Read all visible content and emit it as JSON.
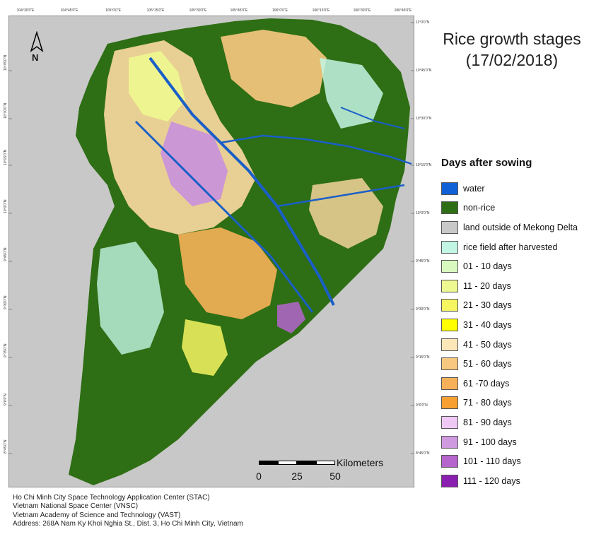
{
  "map": {
    "title_line1": "Rice growth stages",
    "title_line2": "(17/02/2018)",
    "north_label": "N",
    "graticule_top": [
      "104°30'0\"E",
      "104°45'0\"E",
      "105°0'0\"E",
      "105°15'0\"E",
      "105°30'0\"E",
      "105°45'0\"E",
      "106°0'0\"E",
      "106°15'0\"E",
      "106°30'0\"E",
      "106°45'0\"E"
    ],
    "graticule_right": [
      "11°0'0\"N",
      "10°45'0\"N",
      "10°30'0\"N",
      "10°15'0\"N",
      "10°0'0\"N",
      "9°45'0\"N",
      "9°30'0\"N",
      "9°15'0\"N",
      "9°0'0\"N",
      "8°45'0\"N"
    ],
    "graticule_left": [
      "10°45'0\"N",
      "10°30'0\"N",
      "10°15'0\"N",
      "10°0'0\"N",
      "9°45'0\"N",
      "9°30'0\"N",
      "9°15'0\"N",
      "9°0'0\"N",
      "8°45'0\"N"
    ],
    "colors": {
      "background": "#c8c8c8",
      "non_rice": "#2e6e14",
      "water": "#1a5fc8"
    }
  },
  "legend": {
    "title": "Days after sowing",
    "items": [
      {
        "label": "water",
        "color": "#1060d8"
      },
      {
        "label": "non-rice",
        "color": "#2e6e14"
      },
      {
        "label": "land outside of Mekong Delta",
        "color": "#c8c8c8"
      },
      {
        "label": "rice field after harvested",
        "color": "#c3f5e4"
      },
      {
        "label": "01 - 10 days",
        "color": "#d8f8c0"
      },
      {
        "label": "11 - 20 days",
        "color": "#eef890"
      },
      {
        "label": "21 - 30 days",
        "color": "#f6f660"
      },
      {
        "label": "31 - 40 days",
        "color": "#ffff00"
      },
      {
        "label": "41 - 50 days",
        "color": "#fbe7b8"
      },
      {
        "label": "51 - 60 days",
        "color": "#f8c880"
      },
      {
        "label": "61 -70 days",
        "color": "#f6b058"
      },
      {
        "label": "71 - 80 days",
        "color": "#f5a030"
      },
      {
        "label": "81 - 90 days",
        "color": "#efc8f6"
      },
      {
        "label": "91 - 100 days",
        "color": "#d09ae0"
      },
      {
        "label": "101 - 110 days",
        "color": "#b565cc"
      },
      {
        "label": "111 - 120 days",
        "color": "#8a1eb0"
      }
    ]
  },
  "scalebar": {
    "unit": "Kilometers",
    "ticks": [
      "0",
      "25",
      "50"
    ]
  },
  "credits": [
    "Ho Chi Minh City Space Technology Application Center (STAC)",
    "Vietnam National Space Center (VNSC)",
    "Vietnam Academy of Science and Technology (VAST)",
    "Address: 268A Nam Ky Khoi Nghia St., Dist. 3, Ho Chi Minh City, Vietnam"
  ]
}
